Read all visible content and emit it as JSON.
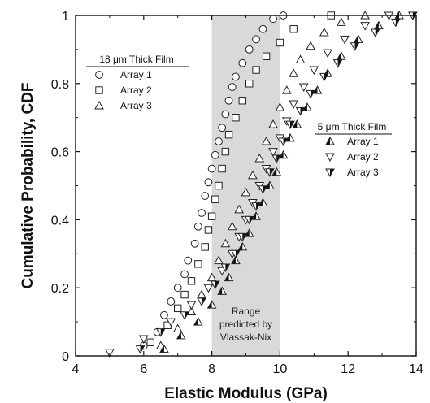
{
  "chart_data": {
    "type": "scatter",
    "xlabel": "Elastic Modulus (GPa)",
    "ylabel": "Cumulative Probability, CDF",
    "xlim": [
      4,
      14
    ],
    "ylim": [
      0,
      1
    ],
    "x_ticks": [
      "4",
      "6",
      "8",
      "10",
      "12",
      "14"
    ],
    "y_ticks": [
      "0",
      "0.2",
      "0.4",
      "0.6",
      "0.8",
      "1"
    ],
    "grid": false,
    "shaded_band": {
      "x_range": [
        8,
        10
      ],
      "color": "#d9d9d9",
      "label_lines": [
        "Range",
        "predicted by",
        "Vlassak-Nix"
      ]
    },
    "legend_groups": [
      {
        "title": "18 μm Thick Film",
        "placement": "upper-left",
        "entries": [
          "Array 1",
          "Array 2",
          "Array 3"
        ]
      },
      {
        "title": "5 μm Thick Film",
        "placement": "center-right",
        "entries": [
          "Array 1",
          "Array 2",
          "Array 3"
        ]
      }
    ],
    "series": [
      {
        "group": "18 μm Thick Film",
        "name": "Array 1",
        "marker": "circle",
        "x": [
          6.0,
          6.4,
          6.6,
          6.8,
          7.0,
          7.2,
          7.3,
          7.5,
          7.6,
          7.7,
          7.8,
          7.9,
          8.0,
          8.1,
          8.2,
          8.3,
          8.4,
          8.5,
          8.6,
          8.7,
          8.9,
          9.1,
          9.3,
          9.5,
          9.8,
          10.1
        ],
        "y": [
          0.03,
          0.07,
          0.12,
          0.16,
          0.2,
          0.24,
          0.28,
          0.33,
          0.38,
          0.42,
          0.47,
          0.51,
          0.55,
          0.59,
          0.63,
          0.67,
          0.71,
          0.75,
          0.79,
          0.82,
          0.86,
          0.9,
          0.93,
          0.96,
          0.99,
          1.0
        ]
      },
      {
        "group": "18 μm Thick Film",
        "name": "Array 2",
        "marker": "square",
        "x": [
          6.2,
          6.7,
          7.0,
          7.2,
          7.4,
          7.6,
          7.8,
          7.9,
          8.0,
          8.1,
          8.2,
          8.3,
          8.4,
          8.5,
          8.7,
          8.9,
          9.1,
          9.3,
          9.6,
          10.0,
          10.4,
          11.5
        ],
        "y": [
          0.04,
          0.09,
          0.14,
          0.18,
          0.22,
          0.27,
          0.32,
          0.37,
          0.41,
          0.46,
          0.5,
          0.55,
          0.6,
          0.65,
          0.7,
          0.75,
          0.8,
          0.84,
          0.88,
          0.92,
          0.96,
          1.0
        ]
      },
      {
        "group": "18 μm Thick Film",
        "name": "Array 3",
        "marker": "triangle-up",
        "x": [
          6.5,
          7.0,
          7.4,
          7.7,
          8.0,
          8.2,
          8.4,
          8.6,
          8.8,
          9.0,
          9.2,
          9.4,
          9.6,
          9.8,
          10.0,
          10.2,
          10.4,
          10.6,
          10.9,
          11.3,
          11.8,
          12.5
        ],
        "y": [
          0.03,
          0.08,
          0.13,
          0.18,
          0.23,
          0.28,
          0.33,
          0.38,
          0.43,
          0.48,
          0.53,
          0.58,
          0.63,
          0.68,
          0.73,
          0.78,
          0.83,
          0.87,
          0.91,
          0.95,
          0.98,
          1.0
        ]
      },
      {
        "group": "5 μm Thick Film",
        "name": "Array 1",
        "marker": "triangle-up-half-filled",
        "x": [
          6.6,
          7.1,
          7.6,
          8.0,
          8.3,
          8.5,
          8.7,
          8.9,
          9.1,
          9.3,
          9.5,
          9.7,
          9.9,
          10.1,
          10.3,
          10.5,
          10.8,
          11.1,
          11.4,
          11.8,
          12.3,
          12.9,
          13.5
        ],
        "y": [
          0.02,
          0.06,
          0.1,
          0.15,
          0.19,
          0.23,
          0.28,
          0.32,
          0.36,
          0.41,
          0.45,
          0.5,
          0.54,
          0.59,
          0.64,
          0.68,
          0.73,
          0.78,
          0.83,
          0.88,
          0.93,
          0.97,
          1.0
        ]
      },
      {
        "group": "5 μm Thick Film",
        "name": "Array 2",
        "marker": "triangle-down",
        "x": [
          5.0,
          6.0,
          6.8,
          7.4,
          7.9,
          8.3,
          8.6,
          8.8,
          9.0,
          9.2,
          9.4,
          9.6,
          9.8,
          10.0,
          10.2,
          10.4,
          10.7,
          11.0,
          11.4,
          11.9,
          12.5,
          13.2
        ],
        "y": [
          0.01,
          0.05,
          0.1,
          0.15,
          0.2,
          0.25,
          0.3,
          0.35,
          0.4,
          0.45,
          0.5,
          0.55,
          0.6,
          0.64,
          0.69,
          0.74,
          0.79,
          0.84,
          0.89,
          0.93,
          0.97,
          1.0
        ]
      },
      {
        "group": "5 μm Thick Film",
        "name": "Array 3",
        "marker": "triangle-down-half-filled",
        "x": [
          5.9,
          6.5,
          7.2,
          7.7,
          8.1,
          8.4,
          8.7,
          8.9,
          9.1,
          9.3,
          9.5,
          9.7,
          9.9,
          10.1,
          10.3,
          10.6,
          10.9,
          11.3,
          11.7,
          12.2,
          12.8,
          13.4,
          13.9
        ],
        "y": [
          0.02,
          0.07,
          0.12,
          0.16,
          0.21,
          0.26,
          0.3,
          0.35,
          0.4,
          0.44,
          0.49,
          0.54,
          0.58,
          0.63,
          0.68,
          0.72,
          0.77,
          0.82,
          0.86,
          0.91,
          0.95,
          0.98,
          1.0
        ]
      }
    ]
  }
}
